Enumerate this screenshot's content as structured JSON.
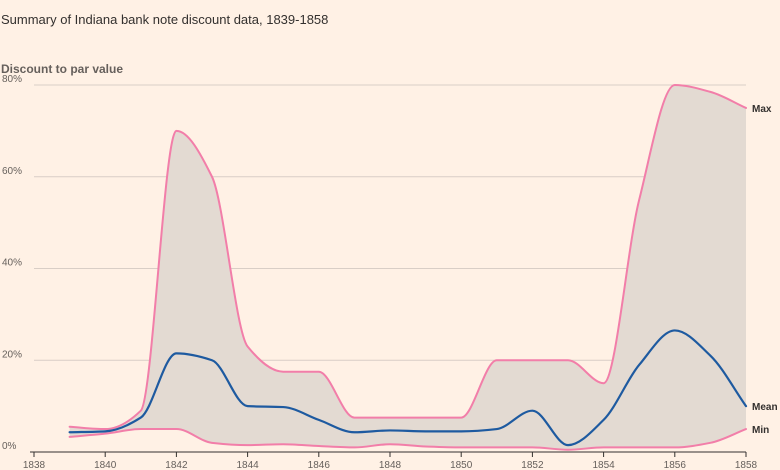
{
  "subtitle": "Summary of Indiana bank note discount data, 1839-1858",
  "colors": {
    "background": "#fff1e5",
    "band_fill": "#e3dad2",
    "max_min_line": "#f27ea9",
    "mean_line": "#1e5aa0",
    "grid": "#d9cec6",
    "axis": "#33302e"
  },
  "chart_data": {
    "type": "area",
    "ylabel": "Discount to par value",
    "xlim": [
      1838,
      1858
    ],
    "ylim": [
      0,
      80
    ],
    "x_ticks": [
      "1838",
      "1840",
      "1842",
      "1844",
      "1846",
      "1848",
      "1850",
      "1852",
      "1854",
      "1856",
      "1858"
    ],
    "y_ticks": [
      "0%",
      "20%",
      "40%",
      "60%",
      "80%"
    ],
    "x": [
      1839,
      1840,
      1841,
      1842,
      1843,
      1844,
      1845,
      1846,
      1847,
      1848,
      1849,
      1850,
      1851,
      1852,
      1853,
      1854,
      1855,
      1856,
      1857,
      1858
    ],
    "series": [
      {
        "name": "Max",
        "values": [
          5.5,
          5,
          9,
          70,
          60,
          23,
          17.5,
          17.5,
          7.5,
          7.5,
          7.5,
          7.5,
          20,
          20,
          20,
          15,
          55,
          80,
          78.5,
          75
        ]
      },
      {
        "name": "Mean",
        "values": [
          4.3,
          4.5,
          7.5,
          21.5,
          20,
          10,
          9.8,
          7,
          4.3,
          4.7,
          4.5,
          4.5,
          5,
          9,
          1.5,
          7,
          19,
          26.5,
          21,
          10
        ]
      },
      {
        "name": "Min",
        "values": [
          3.3,
          4,
          5,
          5,
          2,
          1.5,
          1.7,
          1.3,
          1,
          1.7,
          1.2,
          1,
          1,
          1,
          0.5,
          1,
          1,
          1,
          2,
          5
        ]
      }
    ],
    "grid": true,
    "legend": "inline-right"
  }
}
